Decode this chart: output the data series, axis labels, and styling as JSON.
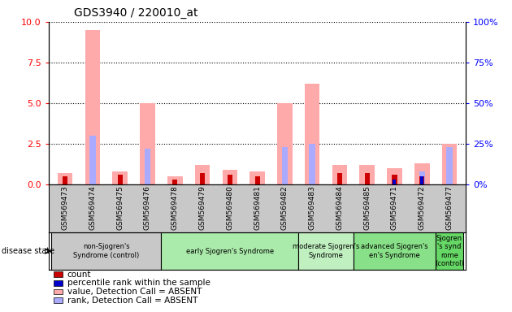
{
  "title": "GDS3940 / 220010_at",
  "samples": [
    "GSM569473",
    "GSM569474",
    "GSM569475",
    "GSM569476",
    "GSM569478",
    "GSM569479",
    "GSM569480",
    "GSM569481",
    "GSM569482",
    "GSM569483",
    "GSM569484",
    "GSM569485",
    "GSM569471",
    "GSM569472",
    "GSM569477"
  ],
  "pink_bars": [
    0.7,
    9.5,
    0.8,
    5.0,
    0.5,
    1.2,
    0.9,
    0.8,
    5.0,
    6.2,
    1.2,
    1.2,
    1.0,
    1.3,
    2.5
  ],
  "blue_light_bars": [
    0.0,
    3.0,
    0.0,
    2.2,
    0.0,
    0.0,
    0.0,
    0.0,
    2.3,
    2.5,
    0.0,
    0.0,
    0.5,
    0.8,
    2.3
  ],
  "red_bars": [
    0.5,
    0.0,
    0.6,
    0.0,
    0.3,
    0.7,
    0.6,
    0.5,
    0.0,
    0.0,
    0.7,
    0.7,
    0.6,
    0.5,
    0.0
  ],
  "dark_blue_bars": [
    0.0,
    0.0,
    0.0,
    0.0,
    0.0,
    0.0,
    0.0,
    0.0,
    0.0,
    0.0,
    0.0,
    0.0,
    0.3,
    0.5,
    0.0
  ],
  "ylim_left": [
    0,
    10
  ],
  "ylim_right": [
    0,
    100
  ],
  "yticks_left": [
    0,
    2.5,
    5.0,
    7.5,
    10
  ],
  "yticks_right": [
    0,
    25,
    50,
    75,
    100
  ],
  "groups": [
    {
      "label": "non-Sjogren's\nSyndrome (control)",
      "start": 0,
      "end": 4,
      "color": "#c8c8c8"
    },
    {
      "label": "early Sjogren's Syndrome",
      "start": 4,
      "end": 9,
      "color": "#aaeaaa"
    },
    {
      "label": "moderate Sjogren's\nSyndrome",
      "start": 9,
      "end": 11,
      "color": "#c0f0c0"
    },
    {
      "label": "advanced Sjogren's\nen's Syndrome",
      "start": 11,
      "end": 14,
      "color": "#88e088"
    },
    {
      "label": "Sjogren\n's synd\nrome\n(control)",
      "start": 14,
      "end": 15,
      "color": "#66d866"
    }
  ],
  "disease_state_label": "disease state",
  "legend_items": [
    {
      "label": "count",
      "color": "#cc0000"
    },
    {
      "label": "percentile rank within the sample",
      "color": "#0000cc"
    },
    {
      "label": "value, Detection Call = ABSENT",
      "color": "#ffaaaa"
    },
    {
      "label": "rank, Detection Call = ABSENT",
      "color": "#aaaaff"
    }
  ],
  "pink_color": "#ffaaaa",
  "blue_light_color": "#aaaaff",
  "red_color": "#cc0000",
  "dark_blue_color": "#0000cc",
  "tick_area_color": "#c8c8c8",
  "left_axis_color": "red",
  "right_axis_color": "blue"
}
